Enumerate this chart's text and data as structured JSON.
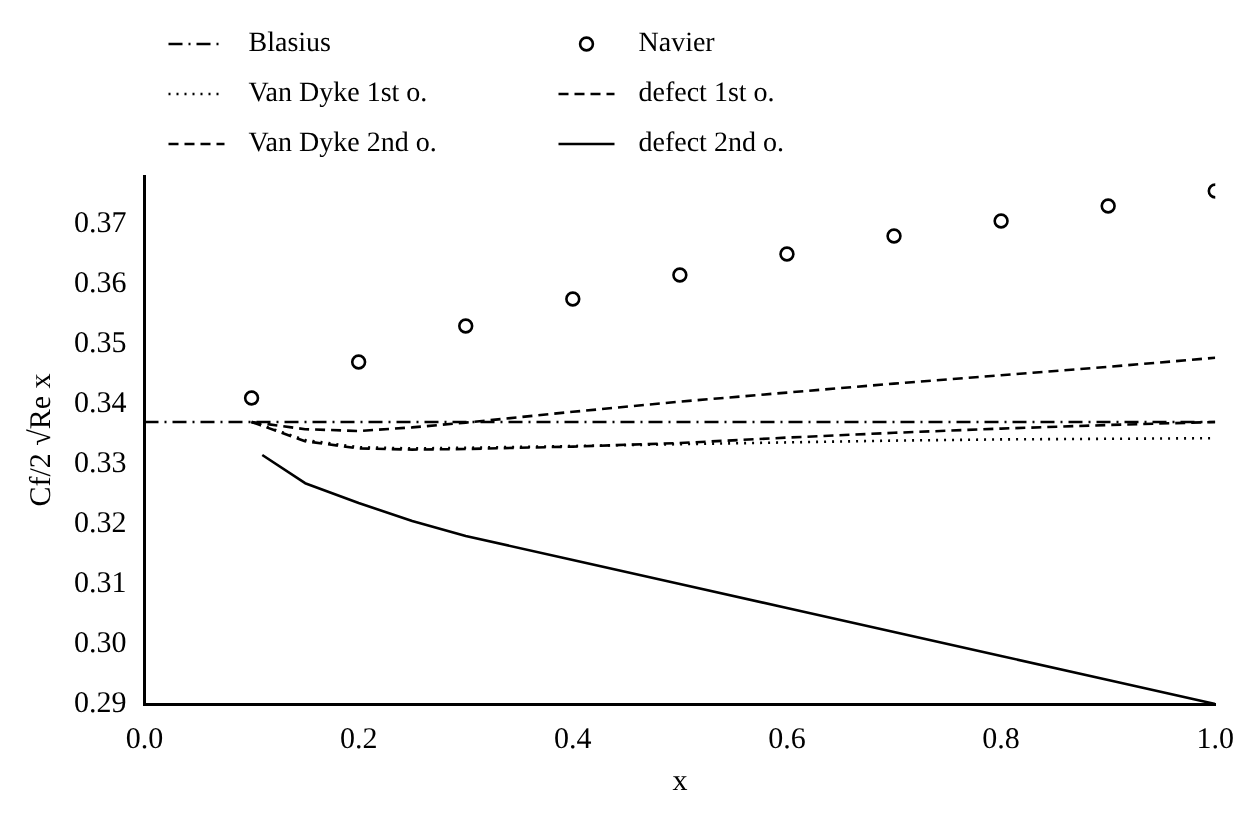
{
  "chart_data": {
    "type": "line",
    "xlabel": "x",
    "ylabel": "Cf/2 √Re x",
    "xlim": [
      0,
      1
    ],
    "xticks": [
      {
        "value": 0,
        "label": "0.0"
      },
      0.2,
      0.4,
      0.6,
      0.8,
      {
        "value": 1,
        "label": "1.0"
      }
    ],
    "ylim": [
      0.29,
      0.378
    ],
    "yticks": [
      0.29,
      {
        "value": 0.3,
        "label": "0.30"
      },
      0.31,
      0.32,
      0.33,
      0.34,
      0.35,
      0.36,
      0.37
    ],
    "grid": false,
    "legend": "top left",
    "series": [
      {
        "name": "Blasius",
        "color": "#000000",
        "line_style": "dashdot",
        "x": [
          0,
          1
        ],
        "values": [
          0.337,
          0.337
        ]
      },
      {
        "name": "Navier",
        "color": "#000000",
        "type": "scatter",
        "marker": "circle",
        "x": [
          0.1,
          0.2,
          0.3,
          0.4,
          0.5,
          0.6,
          0.7,
          0.8,
          0.9,
          1.0
        ],
        "values": [
          0.341,
          0.347,
          0.353,
          0.3575,
          0.3615,
          0.365,
          0.368,
          0.3705,
          0.373,
          0.3755
        ]
      },
      {
        "name": "Van Dyke 1st o.",
        "color": "#000000",
        "line_style": "dotted",
        "x": [
          0.1,
          0.15,
          0.2,
          0.25,
          0.3,
          0.4,
          0.5,
          0.6,
          0.7,
          0.8,
          0.9,
          1.0
        ],
        "values": [
          0.337,
          0.334,
          0.3328,
          0.3326,
          0.3327,
          0.333,
          0.3333,
          0.3336,
          0.3339,
          0.3341,
          0.3342,
          0.3343
        ]
      },
      {
        "name": "defect 1st o.",
        "color": "#000000",
        "line_style": "dashed",
        "x": [
          0.1,
          0.15,
          0.2,
          0.25,
          0.3,
          0.4,
          0.5,
          0.6,
          0.7,
          0.8,
          0.9,
          1.0
        ],
        "values": [
          0.337,
          0.3358,
          0.3355,
          0.3361,
          0.3369,
          0.3387,
          0.3404,
          0.3419,
          0.3434,
          0.3448,
          0.3462,
          0.3477
        ]
      },
      {
        "name": "Van Dyke 2nd o.",
        "color": "#000000",
        "line_style": "dashed",
        "x": [
          0.1,
          0.15,
          0.2,
          0.25,
          0.3,
          0.4,
          0.5,
          0.6,
          0.7,
          0.8,
          0.9,
          1.0
        ],
        "values": [
          0.337,
          0.3338,
          0.3326,
          0.3324,
          0.3325,
          0.3329,
          0.3335,
          0.3344,
          0.3352,
          0.3359,
          0.3365,
          0.337
        ]
      },
      {
        "name": "defect 2nd o.",
        "color": "#000000",
        "line_style": "solid",
        "x": [
          0.11,
          0.15,
          0.2,
          0.25,
          0.3,
          0.4,
          0.5,
          0.6,
          0.7,
          0.8,
          0.9,
          1.0
        ],
        "values": [
          0.3315,
          0.3268,
          0.3235,
          0.3205,
          0.318,
          0.314,
          0.31,
          0.306,
          0.302,
          0.298,
          0.294,
          0.29
        ]
      }
    ]
  }
}
